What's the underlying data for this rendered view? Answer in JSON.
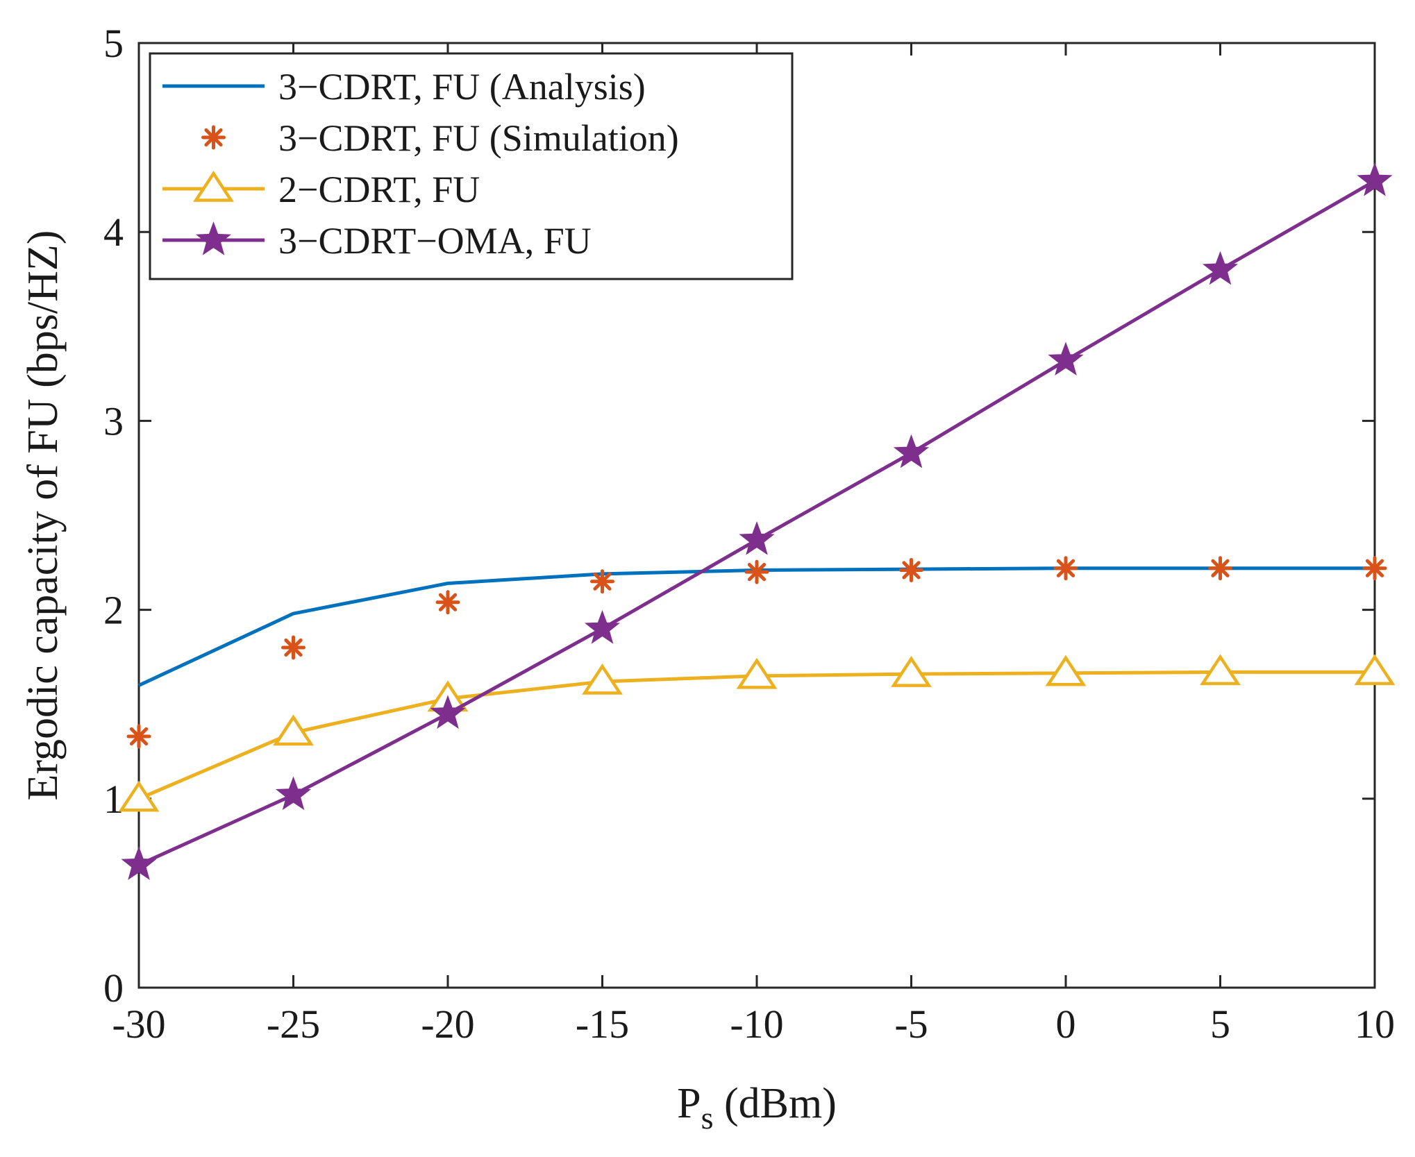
{
  "chart_data": {
    "type": "line",
    "title": "",
    "xlabel_main": "P",
    "xlabel_sub": "s",
    "xlabel_unit": " (dBm)",
    "ylabel": "Ergodic capacity of FU (bps/HZ)",
    "xlim": [
      -30,
      10
    ],
    "ylim": [
      0,
      5
    ],
    "x_ticks": [
      -30,
      -25,
      -20,
      -15,
      -10,
      -5,
      0,
      5,
      10
    ],
    "y_ticks": [
      0,
      1,
      2,
      3,
      4,
      5
    ],
    "grid": false,
    "legend_position": "top-left",
    "x": [
      -30,
      -25,
      -20,
      -15,
      -10,
      -5,
      0,
      5,
      10
    ],
    "series": [
      {
        "name": "3−CDRT, FU  (Analysis)",
        "style": "line",
        "marker": "none",
        "color": "#0072bd",
        "values": [
          1.6,
          1.98,
          2.14,
          2.19,
          2.21,
          2.215,
          2.22,
          2.22,
          2.22
        ]
      },
      {
        "name": "3−CDRT, FU  (Simulation)",
        "style": "markers",
        "marker": "asterisk",
        "color": "#d95319",
        "values": [
          1.33,
          1.8,
          2.04,
          2.15,
          2.2,
          2.21,
          2.22,
          2.22,
          2.22
        ]
      },
      {
        "name": "2−CDRT, FU",
        "style": "line",
        "marker": "triangle",
        "color": "#edb120",
        "values": [
          1.0,
          1.35,
          1.53,
          1.62,
          1.65,
          1.66,
          1.665,
          1.67,
          1.67
        ]
      },
      {
        "name": "3−CDRT−OMA, FU",
        "style": "line",
        "marker": "star",
        "color": "#7e2f8e",
        "values": [
          0.65,
          1.02,
          1.45,
          1.9,
          2.37,
          2.83,
          3.32,
          3.8,
          4.27
        ]
      }
    ]
  }
}
